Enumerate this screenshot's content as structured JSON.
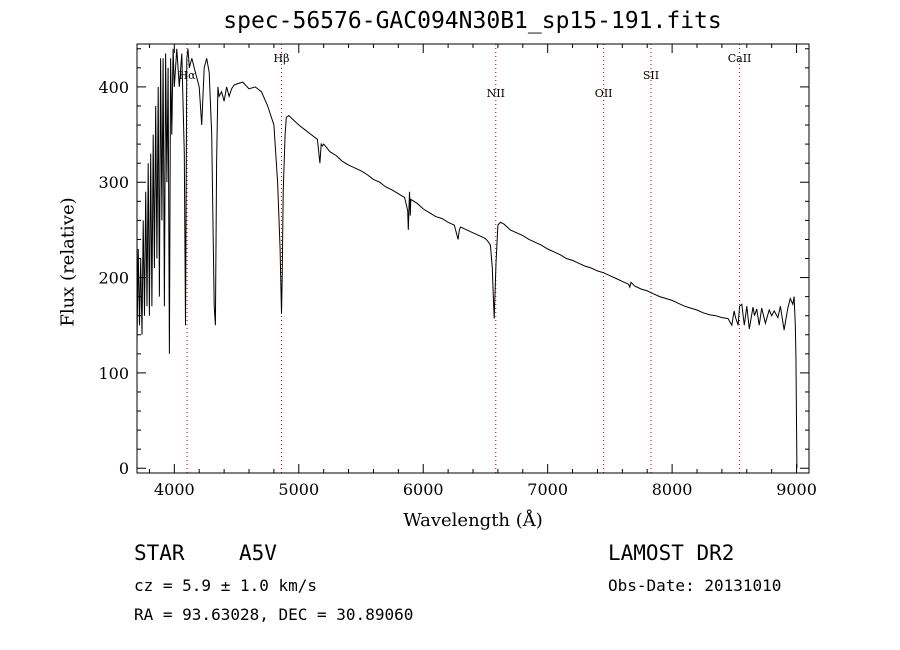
{
  "chart_data": {
    "type": "line",
    "title": "spec-56576-GAC094N30B1_sp15-191.fits",
    "xlabel": "Wavelength (Å)",
    "ylabel": "Flux (relative)",
    "xlim": [
      3700,
      9100
    ],
    "ylim": [
      -5,
      445
    ],
    "xticks": [
      4000,
      5000,
      6000,
      7000,
      8000,
      9000
    ],
    "yticks": [
      0,
      100,
      200,
      300,
      400
    ],
    "xtick_labels": [
      "4000",
      "5000",
      "6000",
      "7000",
      "8000",
      "9000"
    ],
    "ytick_labels": [
      "0",
      "100",
      "200",
      "300",
      "400"
    ],
    "grid": false,
    "line_markers": [
      {
        "label": "Hα",
        "wavelength": 4102
      },
      {
        "label": "Hβ",
        "wavelength": 4861
      },
      {
        "label": "NII",
        "wavelength": 6583
      },
      {
        "label": "OII",
        "wavelength": 7450
      },
      {
        "label": "SII",
        "wavelength": 7830
      },
      {
        "label": "CaII",
        "wavelength": 8542
      }
    ],
    "series": [
      {
        "name": "spectrum",
        "x": [
          3700,
          3710,
          3720,
          3730,
          3740,
          3750,
          3760,
          3770,
          3780,
          3790,
          3800,
          3810,
          3820,
          3830,
          3840,
          3850,
          3860,
          3870,
          3880,
          3890,
          3900,
          3910,
          3920,
          3930,
          3940,
          3950,
          3960,
          3970,
          3980,
          3990,
          4000,
          4020,
          4040,
          4060,
          4080,
          4090,
          4100,
          4110,
          4120,
          4140,
          4160,
          4180,
          4200,
          4220,
          4240,
          4260,
          4280,
          4300,
          4320,
          4330,
          4340,
          4350,
          4360,
          4380,
          4400,
          4420,
          4440,
          4460,
          4480,
          4500,
          4550,
          4600,
          4650,
          4700,
          4750,
          4800,
          4830,
          4850,
          4855,
          4861,
          4867,
          4875,
          4890,
          4900,
          4920,
          4950,
          5000,
          5050,
          5100,
          5150,
          5170,
          5180,
          5190,
          5200,
          5250,
          5300,
          5350,
          5400,
          5450,
          5500,
          5550,
          5600,
          5650,
          5700,
          5750,
          5800,
          5850,
          5875,
          5880,
          5890,
          5896,
          5900,
          5950,
          6000,
          6050,
          6100,
          6150,
          6200,
          6250,
          6280,
          6290,
          6300,
          6350,
          6400,
          6450,
          6500,
          6520,
          6540,
          6555,
          6563,
          6570,
          6585,
          6600,
          6620,
          6650,
          6700,
          6750,
          6800,
          6850,
          6900,
          6950,
          7000,
          7050,
          7100,
          7150,
          7200,
          7250,
          7300,
          7350,
          7400,
          7450,
          7500,
          7550,
          7600,
          7650,
          7660,
          7670,
          7700,
          7750,
          7800,
          7850,
          7900,
          7950,
          8000,
          8050,
          8100,
          8150,
          8200,
          8250,
          8300,
          8350,
          8400,
          8450,
          8480,
          8498,
          8510,
          8530,
          8542,
          8560,
          8580,
          8600,
          8620,
          8650,
          8662,
          8680,
          8700,
          8720,
          8750,
          8780,
          8800,
          8820,
          8850,
          8870,
          8900,
          8930,
          8950,
          8970,
          8980,
          8990,
          8995,
          9000,
          9003
        ],
        "y": [
          130,
          230,
          150,
          220,
          140,
          260,
          160,
          290,
          170,
          320,
          160,
          330,
          170,
          350,
          210,
          380,
          220,
          400,
          180,
          430,
          260,
          430,
          170,
          435,
          300,
          420,
          120,
          430,
          350,
          440,
          400,
          440,
          400,
          435,
          330,
          150,
          430,
          440,
          420,
          430,
          420,
          410,
          400,
          360,
          420,
          430,
          415,
          350,
          170,
          150,
          320,
          400,
          390,
          395,
          385,
          400,
          390,
          398,
          402,
          403,
          405,
          398,
          400,
          395,
          380,
          360,
          300,
          230,
          200,
          162,
          200,
          290,
          350,
          368,
          370,
          366,
          360,
          355,
          350,
          345,
          320,
          340,
          338,
          340,
          332,
          328,
          322,
          318,
          315,
          312,
          308,
          303,
          300,
          295,
          292,
          288,
          284,
          270,
          250,
          290,
          265,
          282,
          278,
          272,
          268,
          264,
          262,
          258,
          255,
          240,
          250,
          253,
          250,
          247,
          244,
          241,
          238,
          234,
          210,
          180,
          157,
          215,
          255,
          258,
          256,
          250,
          247,
          244,
          240,
          237,
          234,
          230,
          227,
          224,
          220,
          218,
          215,
          212,
          210,
          207,
          205,
          202,
          199,
          196,
          193,
          190,
          195,
          191,
          188,
          186,
          183,
          180,
          178,
          176,
          173,
          170,
          168,
          166,
          163,
          161,
          160,
          158,
          157,
          150,
          165,
          158,
          150,
          170,
          172,
          150,
          170,
          146,
          169,
          160,
          167,
          150,
          168,
          152,
          166,
          160,
          165,
          158,
          170,
          145,
          168,
          178,
          172,
          180,
          150,
          120,
          40,
          0
        ]
      }
    ]
  },
  "footer": {
    "object_class": "STAR",
    "subclass": "A5V",
    "survey": "LAMOST DR2",
    "cz": "cz = 5.9 ± 1.0 km/s",
    "obs_date": "Obs-Date: 20131010",
    "coords": "RA =  93.63028, DEC =  30.89060"
  }
}
